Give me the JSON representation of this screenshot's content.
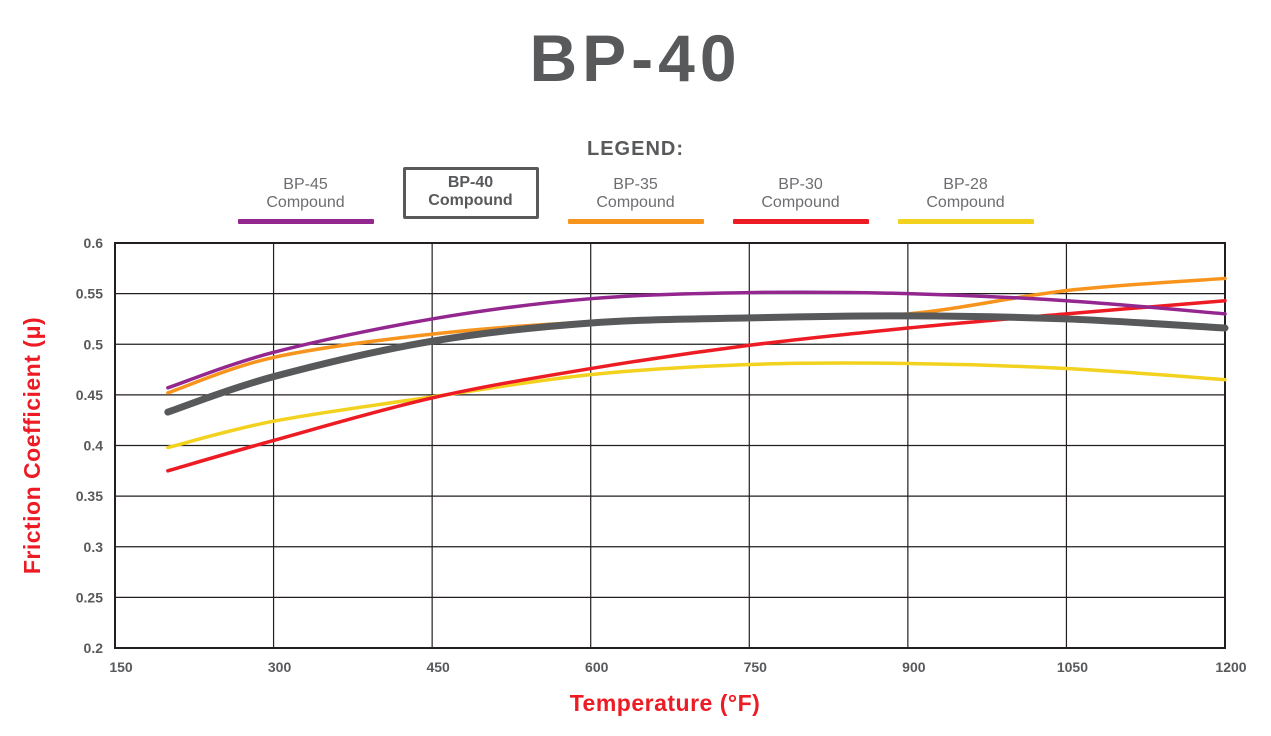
{
  "page": {
    "title": "BP-40",
    "legend_heading": "LEGEND:"
  },
  "legend": {
    "items": [
      {
        "line1": "BP-45",
        "line2": "Compound",
        "color": "#93278f",
        "boxed": false
      },
      {
        "line1": "BP-40",
        "line2": "Compound",
        "color": "#58595b",
        "boxed": true
      },
      {
        "line1": "BP-35",
        "line2": "Compound",
        "color": "#f7941d",
        "boxed": false
      },
      {
        "line1": "BP-30",
        "line2": "Compound",
        "color": "#ed1c24",
        "boxed": false
      },
      {
        "line1": "BP-28",
        "line2": "Compound",
        "color": "#f2d21e",
        "boxed": false
      }
    ]
  },
  "chart_data": {
    "type": "line",
    "title": "BP-40",
    "xlabel": "Temperature (°F)",
    "ylabel": "Friction Coefficient (μ)",
    "xlim": [
      150,
      1200
    ],
    "ylim": [
      0.2,
      0.6
    ],
    "x_ticks": [
      150,
      300,
      450,
      600,
      750,
      900,
      1050,
      1200
    ],
    "y_ticks": [
      0.2,
      0.25,
      0.3,
      0.35,
      0.4,
      0.45,
      0.5,
      0.55,
      0.6
    ],
    "grid": true,
    "legend_position": "top",
    "series": [
      {
        "name": "BP-45 Compound",
        "color": "#93278f",
        "width": 3.5,
        "z": 4,
        "x": [
          200,
          300,
          450,
          600,
          750,
          900,
          1050,
          1200
        ],
        "y": [
          0.457,
          0.492,
          0.525,
          0.545,
          0.551,
          0.55,
          0.543,
          0.53
        ]
      },
      {
        "name": "BP-40 Compound",
        "color": "#58595b",
        "width": 7,
        "z": 5,
        "x": [
          200,
          300,
          450,
          600,
          750,
          900,
          1050,
          1200
        ],
        "y": [
          0.433,
          0.468,
          0.503,
          0.521,
          0.526,
          0.528,
          0.525,
          0.516
        ]
      },
      {
        "name": "BP-35 Compound",
        "color": "#f7941d",
        "width": 3.5,
        "z": 2,
        "x": [
          200,
          300,
          450,
          600,
          750,
          900,
          1050,
          1200
        ],
        "y": [
          0.452,
          0.487,
          0.51,
          0.522,
          0.525,
          0.53,
          0.553,
          0.565
        ]
      },
      {
        "name": "BP-30 Compound",
        "color": "#ed1c24",
        "width": 3.5,
        "z": 3,
        "x": [
          200,
          300,
          450,
          600,
          750,
          900,
          1050,
          1200
        ],
        "y": [
          0.375,
          0.405,
          0.447,
          0.476,
          0.499,
          0.516,
          0.53,
          0.543
        ]
      },
      {
        "name": "BP-28 Compound",
        "color": "#f2d21e",
        "width": 3.5,
        "z": 1,
        "x": [
          200,
          300,
          450,
          600,
          750,
          900,
          1050,
          1200
        ],
        "y": [
          0.398,
          0.424,
          0.448,
          0.47,
          0.48,
          0.481,
          0.476,
          0.465
        ]
      }
    ]
  },
  "colors": {
    "title": "#58595b",
    "axis_label": "#ed1c24",
    "tick_label": "#58595b",
    "grid": "#231f20",
    "background": "#ffffff"
  }
}
